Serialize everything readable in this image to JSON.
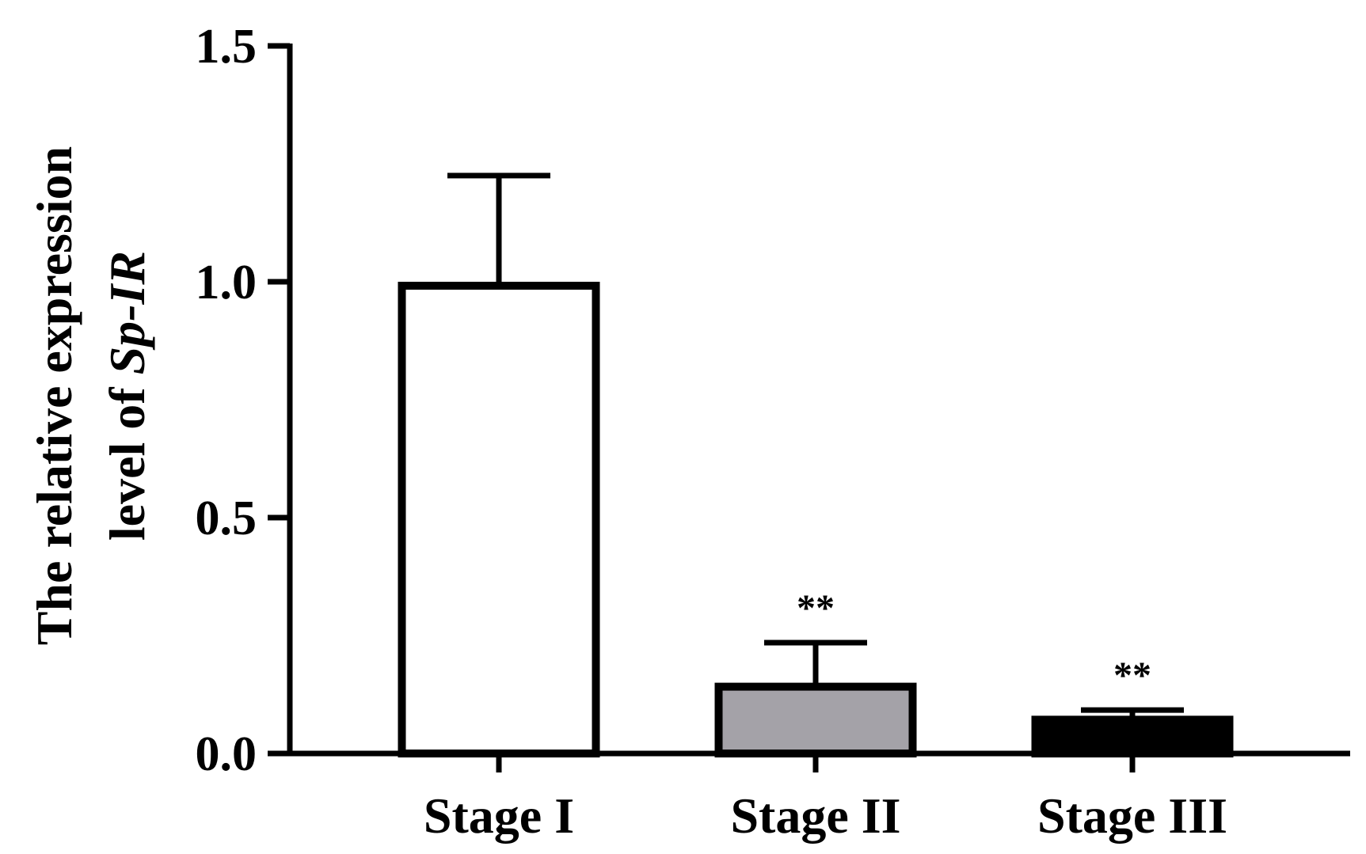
{
  "chart_data": {
    "type": "bar",
    "categories": [
      "Stage I",
      "Stage II",
      "Stage III"
    ],
    "values": [
      1.0,
      0.15,
      0.08
    ],
    "errors": [
      0.225,
      0.085,
      0.012
    ],
    "significance": [
      "",
      "**",
      "**"
    ],
    "bar_fill": [
      "#ffffff",
      "#a4a2a8",
      "#000000"
    ],
    "bar_stroke": "#000000",
    "ylabel_line1": "The relative expression",
    "ylabel_line2_prefix": "level of ",
    "ylabel_line2_italic": "Sp-IR",
    "ylim": [
      0,
      1.5
    ],
    "yticks": [
      "0.0",
      "0.5",
      "1.0",
      "1.5"
    ],
    "ytick_values": [
      0,
      0.5,
      1.0,
      1.5
    ],
    "grid": false
  }
}
